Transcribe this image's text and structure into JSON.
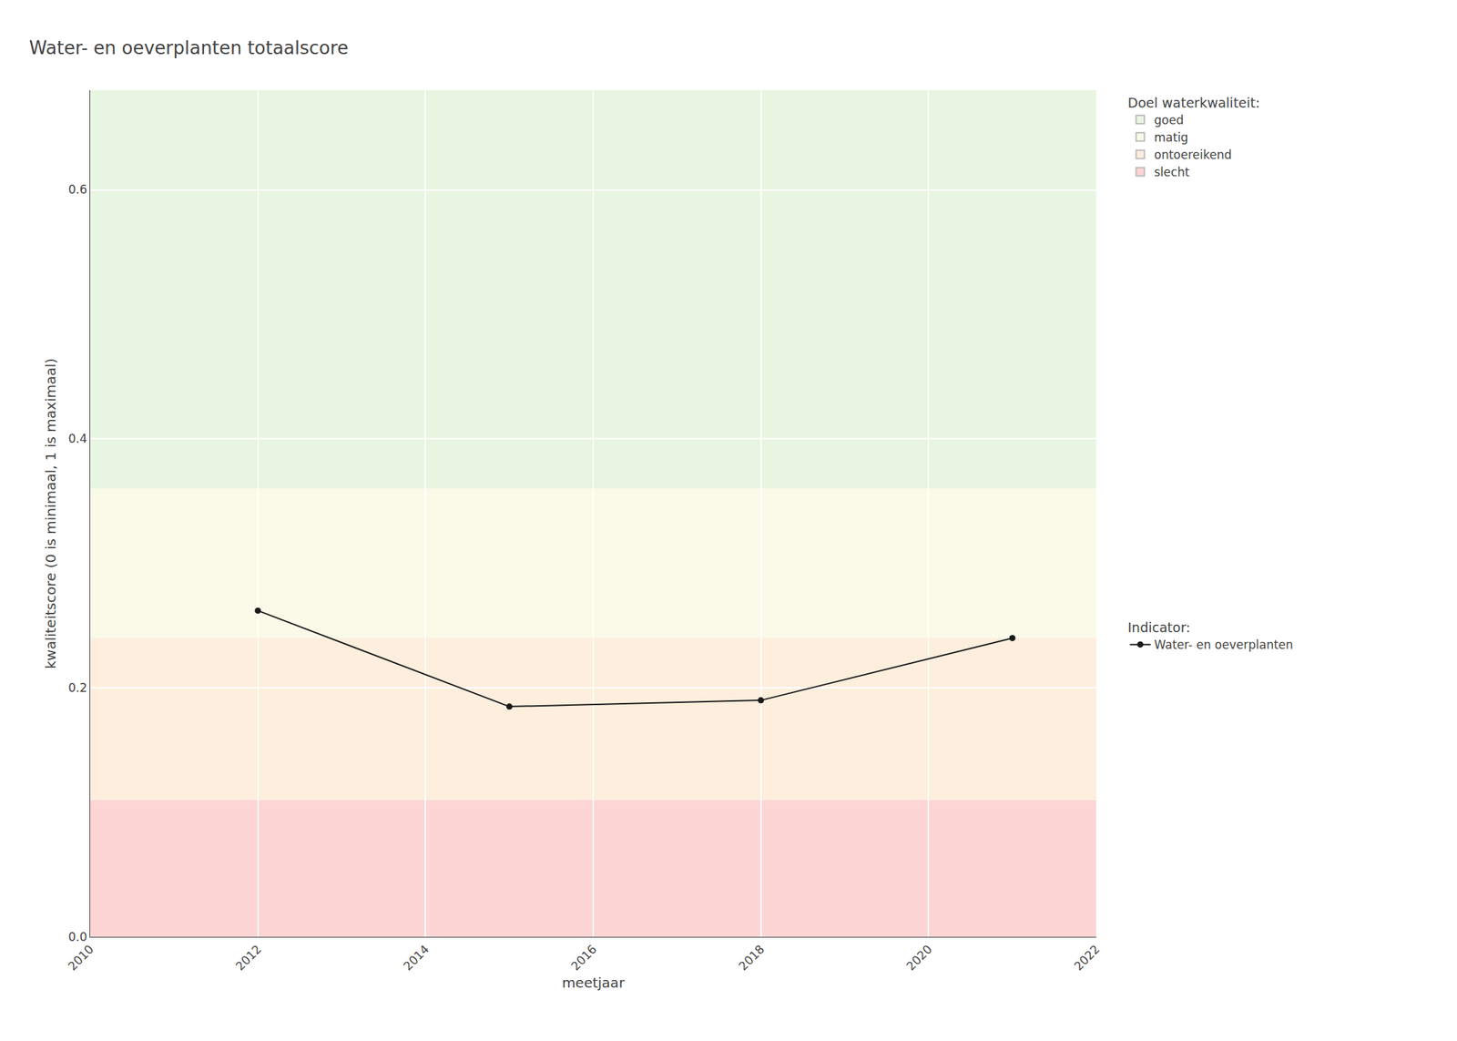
{
  "chart_data": {
    "type": "line",
    "title": "Water- en oeverplanten totaalscore",
    "x_label": "meetjaar",
    "y_label": "kwaliteitscore (0 is minimaal, 1 is maximaal)",
    "x": [
      2012,
      2015,
      2018,
      2021
    ],
    "series": [
      {
        "name": "Water- en oeverplanten",
        "color": "#1a1a1a",
        "marker": "circle",
        "line_style": "solid",
        "values": [
          0.262,
          0.185,
          0.19,
          0.24
        ]
      }
    ],
    "xlim": [
      2010,
      2022
    ],
    "ylim": [
      0,
      0.68
    ],
    "xticks": [
      2010,
      2012,
      2014,
      2016,
      2018,
      2020,
      2022
    ],
    "yticks": [
      {
        "value": 0,
        "label": "0.0"
      },
      0.2,
      0.4,
      0.6
    ],
    "grid": true,
    "legend": "right",
    "bands_title": "Doel waterkwaliteit:",
    "series_title": "Indicator:",
    "bands": [
      {
        "ymin": 0.0,
        "ymax": 0.11,
        "color": "#fdd5d5",
        "label": "slecht"
      },
      {
        "ymin": 0.11,
        "ymax": 0.24,
        "color": "#fdeedd",
        "label": "ontoereikend"
      },
      {
        "ymin": 0.24,
        "ymax": 0.36,
        "color": "#fafae8",
        "label": "matig"
      },
      {
        "ymin": 0.36,
        "ymax": 0.68,
        "color": "#e8f5e1",
        "label": "goed"
      }
    ]
  }
}
